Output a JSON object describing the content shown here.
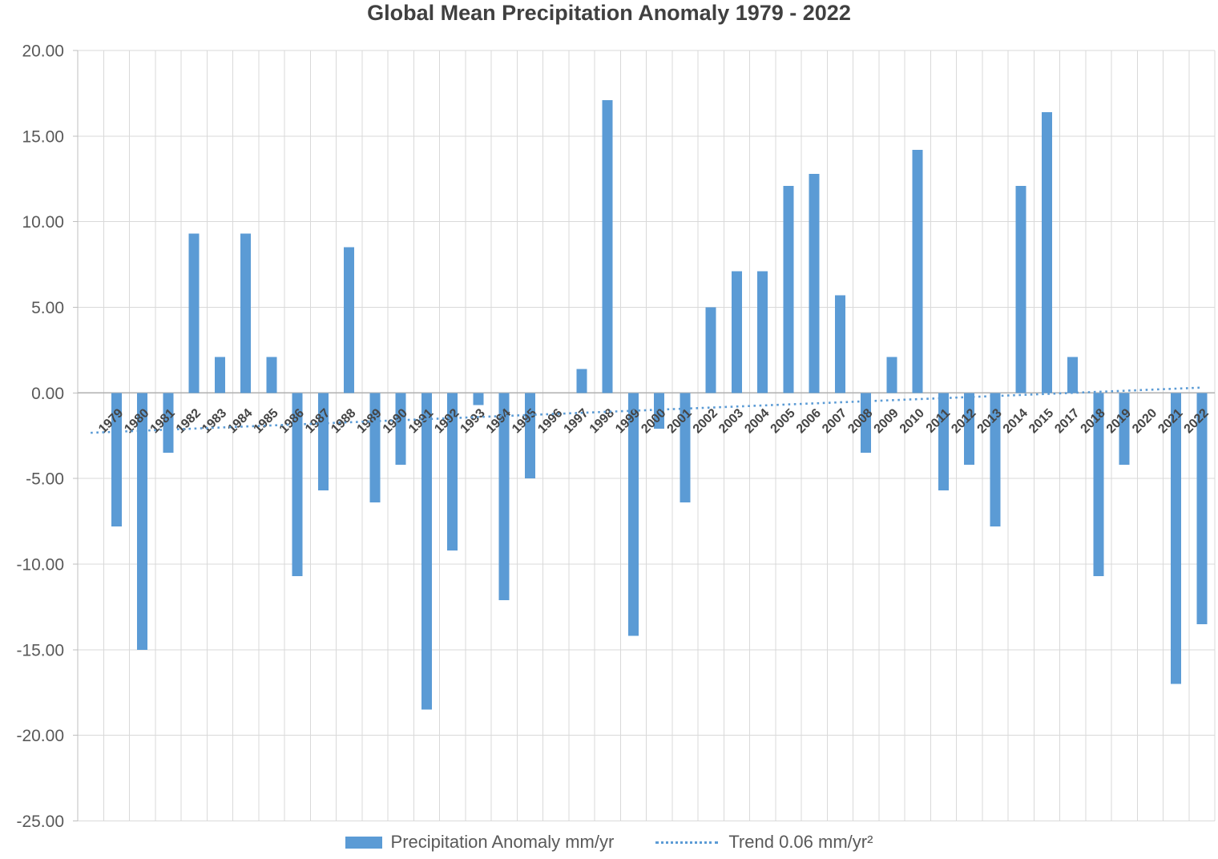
{
  "chart_data": {
    "type": "bar",
    "title": "Global Mean Precipitation Anomaly 1979 - 2022",
    "series_name": "Precipitation Anomaly mm/yr",
    "categories": [
      "1979",
      "1980",
      "1981",
      "1982",
      "1983",
      "1984",
      "1985",
      "1986",
      "1987",
      "1988",
      "1989",
      "1990",
      "1991",
      "1992",
      "1993",
      "1994",
      "1995",
      "1996",
      "1997",
      "1998",
      "1999",
      "2000",
      "2001",
      "2002",
      "2003",
      "2004",
      "2005",
      "2006",
      "2007",
      "2008",
      "2009",
      "2010",
      "2011",
      "2012",
      "2013",
      "2014",
      "2015",
      "2017",
      "2018",
      "2019",
      "2020",
      "2021",
      "2022"
    ],
    "values": [
      -7.8,
      -15.0,
      -3.5,
      9.3,
      2.1,
      9.3,
      2.1,
      -10.7,
      -5.7,
      8.5,
      -6.4,
      -4.2,
      -18.5,
      -9.2,
      -0.7,
      -12.1,
      -5.0,
      0.0,
      1.4,
      17.1,
      -14.2,
      -2.1,
      -6.4,
      5.0,
      7.1,
      7.1,
      12.1,
      12.8,
      5.7,
      -3.5,
      2.1,
      14.2,
      -5.7,
      -4.2,
      -7.8,
      12.1,
      16.4,
      2.1,
      -10.7,
      -4.2,
      0.0,
      -17.0,
      -13.5
    ],
    "xlabel": "",
    "ylabel": "",
    "ylim": [
      -25,
      20
    ],
    "y_tick_step": 5,
    "y_tick_labels": [
      "20.00",
      "15.00",
      "10.00",
      "5.00",
      "0.00",
      "-5.00",
      "-10.00",
      "-15.00",
      "-20.00",
      "-25.00"
    ],
    "grid": true,
    "legend_position": "bottom",
    "x_tick_label_rotation_deg": -45,
    "leading_empty_slots": 1,
    "note_missing_category": "2016",
    "trend": {
      "label": "Trend 0.06 mm/yr²",
      "slope_per_year": 0.06,
      "start_value": -2.33,
      "end_value": 0.31
    },
    "colors": {
      "bar": "#5b9bd5",
      "trend": "#5b9bd5",
      "gridline": "#d9d9d9",
      "axis_line": "#bfbfbf",
      "zero_line": "#b0b0b0",
      "title_text": "#404040",
      "y_label_text": "#595959",
      "x_label_text": "#454545",
      "legend_text": "#595959"
    }
  },
  "legend": {
    "series_label": "Precipitation Anomaly mm/yr",
    "trend_label": "Trend 0.06 mm/yr²"
  }
}
